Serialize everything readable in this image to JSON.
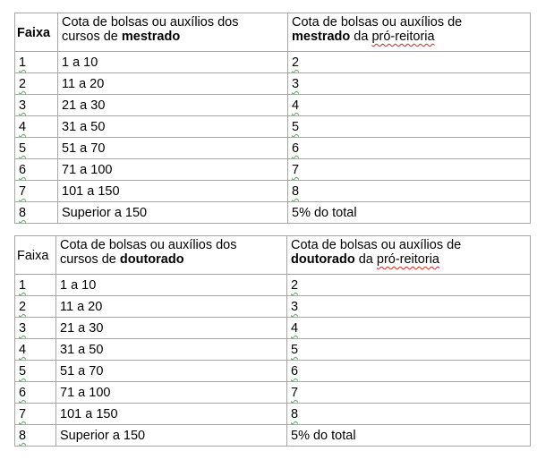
{
  "tables": [
    {
      "header": {
        "faixa": "Faixa",
        "col2_a": "Cota de bolsas ou auxílios dos",
        "col2_b": "cursos de ",
        "col2_bold": "mestrado",
        "col3_a": "Cota de bolsas ou auxílios de",
        "col3_bold": "mestrado",
        "col3_b": " da ",
        "col3_c": "pró-reitoria"
      },
      "rows": [
        [
          "1",
          "1 a 10",
          "2"
        ],
        [
          "2",
          "11 a 20",
          "3"
        ],
        [
          "3",
          "21 a 30",
          "4"
        ],
        [
          "4",
          "31 a 50",
          "5"
        ],
        [
          "5",
          "51 a 70",
          "6"
        ],
        [
          "6",
          "71 a 100",
          "7"
        ],
        [
          "7",
          "101 a 150",
          "8"
        ],
        [
          "8",
          "Superior a 150",
          "5% do total"
        ]
      ]
    },
    {
      "header": {
        "faixa": "Faixa",
        "col2_a": "Cota de bolsas ou auxílios dos",
        "col2_b": "cursos de ",
        "col2_bold": "doutorado",
        "col3_a": "Cota de bolsas ou auxílios de",
        "col3_bold": "doutorado",
        "col3_b": " da ",
        "col3_c": "pró-reitoria"
      },
      "rows": [
        [
          "1",
          "1 a 10",
          "2"
        ],
        [
          "2",
          "11 a 20",
          "3"
        ],
        [
          "3",
          "21 a 30",
          "4"
        ],
        [
          "4",
          "31 a 50",
          "5"
        ],
        [
          "5",
          "51 a 70",
          "6"
        ],
        [
          "6",
          "71 a 100",
          "7"
        ],
        [
          "7",
          "101 a 150",
          "8"
        ],
        [
          "8",
          "Superior a 150",
          "5% do total"
        ]
      ]
    }
  ]
}
